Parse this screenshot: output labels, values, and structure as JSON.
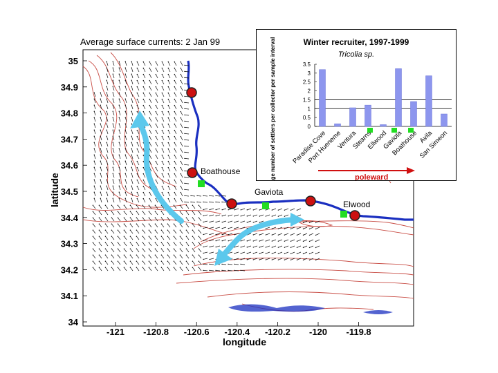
{
  "map": {
    "title": "Average surface currents:  2 Jan 99",
    "xlabel": "longitude",
    "ylabel": "latitude",
    "lat_ticks": [
      "35",
      "34.9",
      "34.8",
      "34.7",
      "34.6",
      "34.5",
      "34.4",
      "34.3",
      "34.2",
      "34.1",
      "34"
    ],
    "lon_ticks": [
      "-121",
      "-120.8",
      "-120.6",
      "-120.4",
      "-120.2",
      "-120",
      "-119.8"
    ],
    "sites": [
      {
        "label": "Boathouse"
      },
      {
        "label": "Gaviota"
      },
      {
        "label": "Elwood"
      }
    ],
    "colors": {
      "coast": "#1a2fc0",
      "contour": "#c84c44",
      "flow": "#5cc8ec",
      "marker": "#cc1111",
      "station": "#22dd22"
    }
  },
  "chart_data": {
    "type": "bar",
    "title": "Winter recruiter, 1997-1999",
    "subtitle": "Tricolia sp.",
    "ylabel": "Average number of settlers per collector per sample interval",
    "ylim": [
      0,
      3.5
    ],
    "yticks": [
      "3.5",
      "3",
      "2.5",
      "2",
      "1.5",
      "1",
      "0.5",
      "0"
    ],
    "categories": [
      "Paradise Cove",
      "Port Hueneme",
      "Ventura",
      "Stearns",
      "Ellwood",
      "Gaviota",
      "Boathouse",
      "Avila",
      "San Simeon"
    ],
    "values": [
      3.2,
      0.15,
      1.05,
      1.2,
      0.1,
      3.25,
      1.4,
      2.85,
      0.7
    ],
    "reference_lines": [
      1.5,
      1.0
    ],
    "arrow_label": "poleward"
  }
}
